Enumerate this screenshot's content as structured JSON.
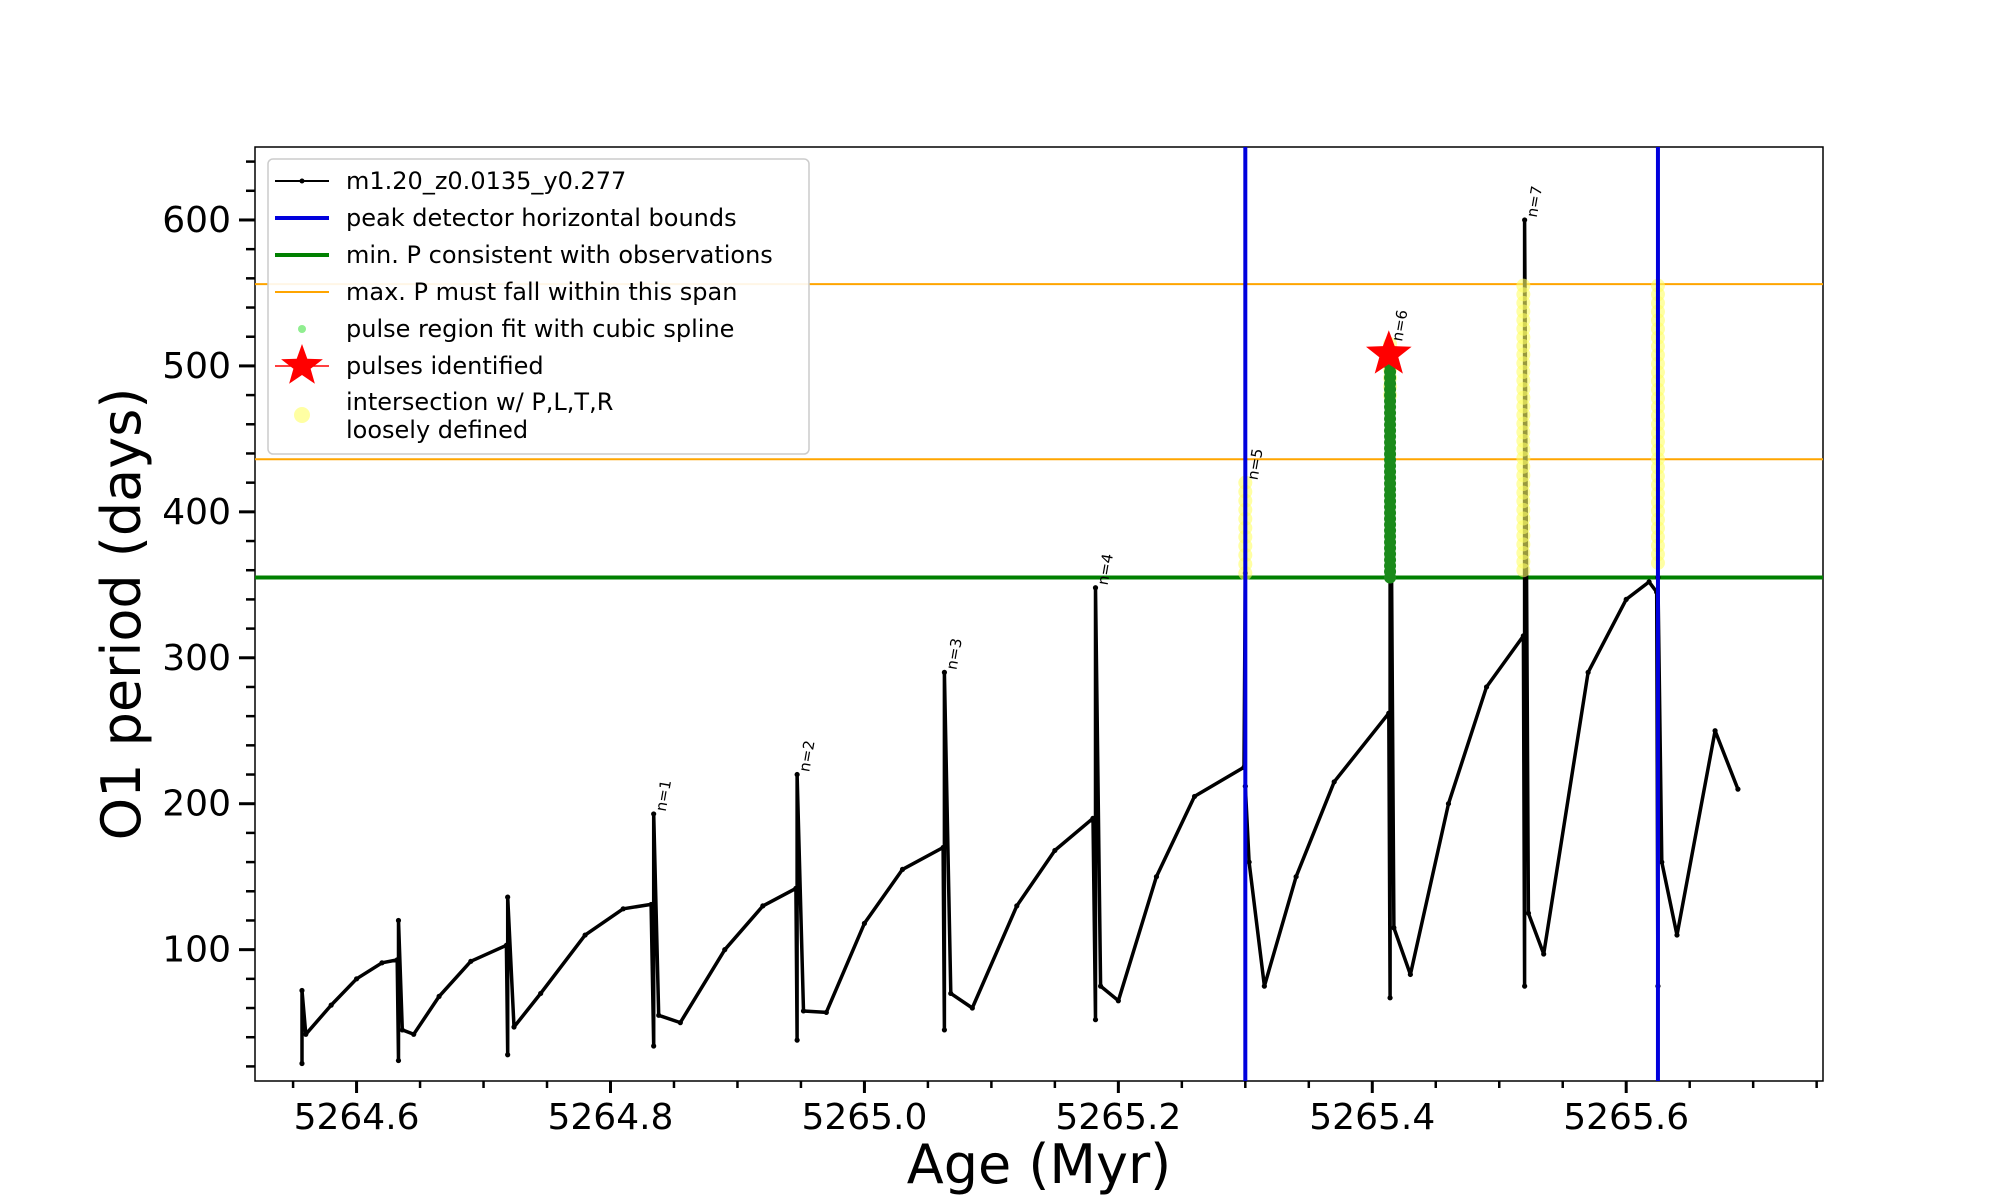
{
  "chart_data": {
    "type": "line",
    "xlabel": "Age (Myr)",
    "ylabel": "O1 period (days)",
    "xlim": [
      5264.52,
      5265.755
    ],
    "ylim": [
      10,
      650
    ],
    "xticks": [
      5264.6,
      5264.8,
      5265.0,
      5265.2,
      5265.4,
      5265.6
    ],
    "xtick_labels": [
      "5264.6",
      "5264.8",
      "5265.0",
      "5265.2",
      "5265.4",
      "5265.6"
    ],
    "yticks": [
      100,
      200,
      300,
      400,
      500,
      600
    ],
    "ytick_labels": [
      "100",
      "200",
      "300",
      "400",
      "500",
      "600"
    ],
    "legend_position": "top-left",
    "colors": {
      "track": "#000000",
      "peak_bounds": "#0000dd",
      "min_p": "#008000",
      "max_p_span": "#ffa500",
      "spline": "#90ee90",
      "spline_fit": "#1a8a1a",
      "pulse_star": "#ff0000",
      "intersection": "#ffff66"
    },
    "series": [
      {
        "name": "m1.20_z0.0135_y0.277",
        "style": "black line with small dot markers",
        "x": [
          5264.557,
          5264.557,
          5264.56,
          5264.58,
          5264.6,
          5264.62,
          5264.632,
          5264.633,
          5264.633,
          5264.636,
          5264.645,
          5264.665,
          5264.69,
          5264.718,
          5264.719,
          5264.719,
          5264.724,
          5264.745,
          5264.78,
          5264.81,
          5264.832,
          5264.834,
          5264.834,
          5264.838,
          5264.855,
          5264.89,
          5264.92,
          5264.946,
          5264.947,
          5264.947,
          5264.952,
          5264.97,
          5265.0,
          5265.03,
          5265.062,
          5265.063,
          5265.063,
          5265.068,
          5265.085,
          5265.12,
          5265.15,
          5265.18,
          5265.182,
          5265.182,
          5265.186,
          5265.2,
          5265.23,
          5265.26,
          5265.299,
          5265.3,
          5265.3,
          5265.303,
          5265.315,
          5265.34,
          5265.37,
          5265.413,
          5265.414,
          5265.414,
          5265.417,
          5265.43,
          5265.46,
          5265.49,
          5265.519,
          5265.52,
          5265.52,
          5265.523,
          5265.535,
          5265.57,
          5265.6,
          5265.618,
          5265.624,
          5265.625,
          5265.625,
          5265.628,
          5265.64,
          5265.67,
          5265.688
        ],
        "y": [
          22,
          72,
          42,
          62,
          80,
          91,
          93,
          24,
          120,
          45,
          42,
          68,
          92,
          103,
          28,
          136,
          47,
          70,
          110,
          128,
          131,
          34,
          193,
          55,
          50,
          100,
          130,
          142,
          38,
          220,
          58,
          57,
          118,
          155,
          170,
          45,
          290,
          70,
          60,
          130,
          168,
          190,
          52,
          348,
          75,
          65,
          150,
          205,
          225,
          358,
          212,
          160,
          75,
          150,
          215,
          262,
          67,
          510,
          115,
          83,
          200,
          280,
          315,
          75,
          600,
          125,
          97,
          290,
          340,
          352,
          345,
          75,
          355,
          160,
          110,
          250,
          210
        ]
      }
    ],
    "peak_detector_bounds": {
      "name": "peak detector horizontal bounds",
      "x": [
        5265.3,
        5265.625
      ]
    },
    "min_period": {
      "name": "min. P consistent with observations",
      "y": 355
    },
    "max_period_span": {
      "name": "max. P must fall within this span",
      "y": [
        436,
        556
      ]
    },
    "spline_fit": {
      "name": "pulse region fit with cubic spline",
      "x": 5265.414,
      "y_range": [
        355,
        500
      ]
    },
    "pulses_identified": {
      "name": "pulses identified",
      "x": 5265.413,
      "y": 508
    },
    "intersections": {
      "name": "intersection w/ P,L,T,R\nloosely defined",
      "groups": [
        {
          "x": 5265.3,
          "y_range": [
            358,
            420
          ]
        },
        {
          "x": 5265.414,
          "y_range": [
            480,
            515
          ]
        },
        {
          "x": 5265.519,
          "y_range": [
            360,
            555
          ]
        },
        {
          "x": 5265.625,
          "y_range": [
            365,
            555
          ]
        }
      ]
    },
    "pulse_labels": [
      {
        "text": "n=1",
        "x": 5264.834,
        "y": 193
      },
      {
        "text": "n=2",
        "x": 5264.947,
        "y": 220
      },
      {
        "text": "n=3",
        "x": 5265.063,
        "y": 290
      },
      {
        "text": "n=4",
        "x": 5265.182,
        "y": 348
      },
      {
        "text": "n=5",
        "x": 5265.3,
        "y": 420
      },
      {
        "text": "n=6",
        "x": 5265.414,
        "y": 515
      },
      {
        "text": "n=7",
        "x": 5265.52,
        "y": 600
      }
    ],
    "legend": [
      {
        "label": "m1.20_z0.0135_y0.277",
        "kind": "line-marker"
      },
      {
        "label": "peak detector horizontal bounds",
        "kind": "line"
      },
      {
        "label": "min. P consistent with observations",
        "kind": "line"
      },
      {
        "label": "max. P must fall within this span",
        "kind": "thin-line"
      },
      {
        "label": "pulse region fit with cubic spline",
        "kind": "dot"
      },
      {
        "label": "pulses identified",
        "kind": "star"
      },
      {
        "label": "intersection w/ P,L,T,R\nloosely defined",
        "kind": "circle"
      }
    ]
  }
}
